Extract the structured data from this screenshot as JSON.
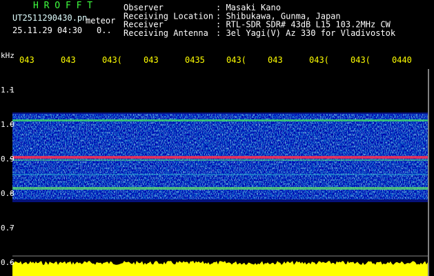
{
  "header": {
    "title": "H R O F F T",
    "file": "UT2511290430.pn",
    "tag": "meteor",
    "datetime": "25.11.29 04:30",
    "extra": "0..",
    "info": [
      {
        "label": "Observer",
        "value": ": Masaki Kano"
      },
      {
        "label": "Receiving Location",
        "value": ": Shibukawa, Gunma, Japan"
      },
      {
        "label": "Receiver",
        "value": ": RTL-SDR SDR# 43dB L15 103.2MHz CW"
      },
      {
        "label": "Receiving Antenna",
        "value": ": 3el Yagi(V) Az 330 for Vladivostok"
      }
    ]
  },
  "axis": {
    "unit": "kHz",
    "time_labels": [
      "043",
      "043",
      "043(",
      "043",
      "0435",
      "043(",
      "043",
      "043(",
      "043(",
      "0440"
    ],
    "freq_labels": [
      "1.1",
      "1.0",
      "0.9",
      "0.8",
      "0.7",
      "0.6"
    ]
  }
}
